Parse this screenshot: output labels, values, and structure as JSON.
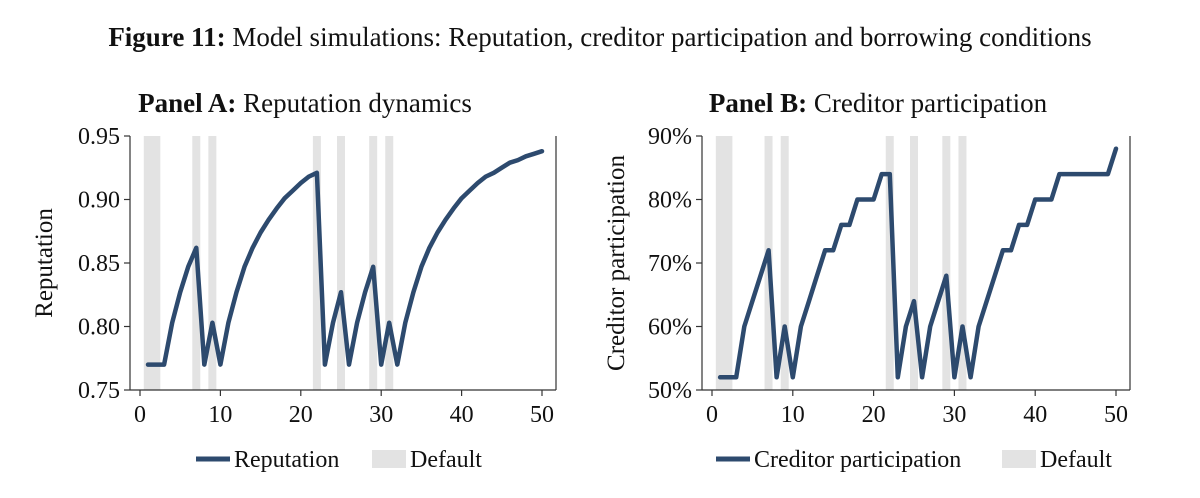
{
  "figure": {
    "label": "Figure 11:",
    "title": "Model simulations: Reputation, creditor participation and borrowing conditions"
  },
  "colors": {
    "line": "#2d4a6e",
    "default_band": "#e3e3e3",
    "axis": "#333333"
  },
  "chart_data": [
    {
      "type": "line",
      "panel_label": "Panel A:",
      "title": "Reputation dynamics",
      "ylabel": "Reputation",
      "xlabel": "",
      "xlim": [
        0,
        50
      ],
      "ylim": [
        0.75,
        0.95
      ],
      "xticks": [
        "0",
        "10",
        "20",
        "30",
        "40",
        "50"
      ],
      "yticks": [
        "0.75",
        "0.80",
        "0.85",
        "0.90",
        "0.95"
      ],
      "default_periods": [
        1,
        2,
        7,
        9,
        22,
        25,
        29,
        31
      ],
      "series": [
        {
          "name": "Reputation",
          "x": [
            1,
            2,
            3,
            4,
            5,
            6,
            7,
            8,
            9,
            10,
            11,
            12,
            13,
            14,
            15,
            16,
            17,
            18,
            19,
            20,
            21,
            22,
            23,
            24,
            25,
            26,
            27,
            28,
            29,
            30,
            31,
            32,
            33,
            34,
            35,
            36,
            37,
            38,
            39,
            40,
            41,
            42,
            43,
            44,
            45,
            46,
            47,
            48,
            49,
            50
          ],
          "values": [
            0.77,
            0.77,
            0.77,
            0.803,
            0.827,
            0.847,
            0.862,
            0.77,
            0.803,
            0.77,
            0.803,
            0.827,
            0.847,
            0.862,
            0.874,
            0.884,
            0.893,
            0.901,
            0.907,
            0.913,
            0.918,
            0.921,
            0.77,
            0.803,
            0.827,
            0.77,
            0.803,
            0.827,
            0.847,
            0.77,
            0.803,
            0.77,
            0.803,
            0.827,
            0.847,
            0.862,
            0.874,
            0.884,
            0.893,
            0.901,
            0.907,
            0.913,
            0.918,
            0.921,
            0.925,
            0.929,
            0.931,
            0.934,
            0.936,
            0.938
          ]
        }
      ],
      "legend": {
        "line_label": "Reputation",
        "band_label": "Default"
      }
    },
    {
      "type": "line",
      "panel_label": "Panel B:",
      "title": "Creditor participation",
      "ylabel": "Creditor participation",
      "xlabel": "",
      "xlim": [
        0,
        50
      ],
      "ylim": [
        50,
        90
      ],
      "xticks": [
        "0",
        "10",
        "20",
        "30",
        "40",
        "50"
      ],
      "yticks": [
        "50%",
        "60%",
        "70%",
        "80%",
        "90%"
      ],
      "default_periods": [
        1,
        2,
        7,
        9,
        22,
        25,
        29,
        31
      ],
      "series": [
        {
          "name": "Creditor participation",
          "x": [
            1,
            2,
            3,
            4,
            5,
            6,
            7,
            8,
            9,
            10,
            11,
            12,
            13,
            14,
            15,
            16,
            17,
            18,
            19,
            20,
            21,
            22,
            23,
            24,
            25,
            26,
            27,
            28,
            29,
            30,
            31,
            32,
            33,
            34,
            35,
            36,
            37,
            38,
            39,
            40,
            41,
            42,
            43,
            44,
            45,
            46,
            47,
            48,
            49,
            50
          ],
          "values": [
            52,
            52,
            52,
            60,
            64,
            68,
            72,
            52,
            60,
            52,
            60,
            64,
            68,
            72,
            72,
            76,
            76,
            80,
            80,
            80,
            84,
            84,
            52,
            60,
            64,
            52,
            60,
            64,
            68,
            52,
            60,
            52,
            60,
            64,
            68,
            72,
            72,
            76,
            76,
            80,
            80,
            80,
            84,
            84,
            84,
            84,
            84,
            84,
            84,
            88
          ]
        }
      ],
      "legend": {
        "line_label": "Creditor participation",
        "band_label": "Default"
      }
    }
  ]
}
